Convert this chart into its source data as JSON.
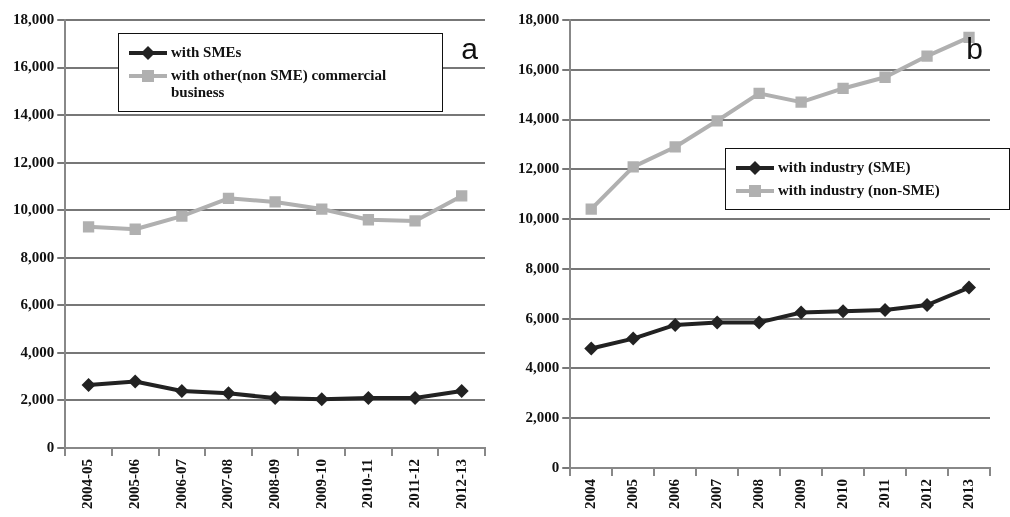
{
  "chart_data": [
    {
      "type": "line",
      "title": "a",
      "categories": [
        "2004-05",
        "2005-06",
        "2006-07",
        "2007-08",
        "2008-09",
        "2009-10",
        "2010-11",
        "2011-12",
        "2012-13"
      ],
      "series": [
        {
          "name": "with SMEs",
          "color": "#222222",
          "marker": "diamond",
          "values": [
            2650,
            2800,
            2400,
            2300,
            2100,
            2050,
            2100,
            2100,
            2400
          ]
        },
        {
          "name": "with other(non SME) commercial business",
          "color": "#b0b0b0",
          "marker": "square",
          "values": [
            9300,
            9200,
            9750,
            10500,
            10350,
            10050,
            9600,
            9550,
            10600
          ]
        }
      ],
      "ylim": [
        0,
        18000
      ],
      "yticks": [
        0,
        {
          "value": 2000,
          "label": "2,000"
        },
        {
          "value": 4000,
          "label": "4,000"
        },
        {
          "value": 6000,
          "label": "6,000"
        },
        {
          "value": 8000,
          "label": "8,000"
        },
        {
          "value": 10000,
          "label": "10,000"
        },
        {
          "value": 12000,
          "label": "12,000"
        },
        {
          "value": 14000,
          "label": "14,000"
        },
        {
          "value": 16000,
          "label": "16,000"
        },
        {
          "value": 18000,
          "label": "18,000"
        }
      ],
      "grid": "y",
      "legend": "top right"
    },
    {
      "type": "line",
      "title": "b",
      "categories": [
        "2004",
        "2005",
        "2006",
        "2007",
        "2008",
        "2009",
        "2010",
        "2011",
        "2012",
        "2013"
      ],
      "series": [
        {
          "name": "with industry (SME)",
          "color": "#222222",
          "marker": "diamond",
          "values": [
            4800,
            5200,
            5750,
            5850,
            5850,
            6250,
            6300,
            6350,
            6550,
            7250
          ]
        },
        {
          "name": "with industry (non-SME)",
          "color": "#b0b0b0",
          "marker": "square",
          "values": [
            10400,
            12100,
            12900,
            13950,
            15050,
            14700,
            15250,
            15700,
            16550,
            17300
          ]
        }
      ],
      "ylim": [
        0,
        18000
      ],
      "yticks": [
        0,
        {
          "value": 2000,
          "label": "2,000"
        },
        {
          "value": 4000,
          "label": "4,000"
        },
        {
          "value": 6000,
          "label": "6,000"
        },
        {
          "value": 8000,
          "label": "8,000"
        },
        {
          "value": 10000,
          "label": "10,000"
        },
        {
          "value": 12000,
          "label": "12,000"
        },
        {
          "value": 14000,
          "label": "14,000"
        },
        {
          "value": 16000,
          "label": "16,000"
        },
        {
          "value": 18000,
          "label": "18,000"
        }
      ],
      "grid": "y",
      "legend": "right"
    }
  ]
}
